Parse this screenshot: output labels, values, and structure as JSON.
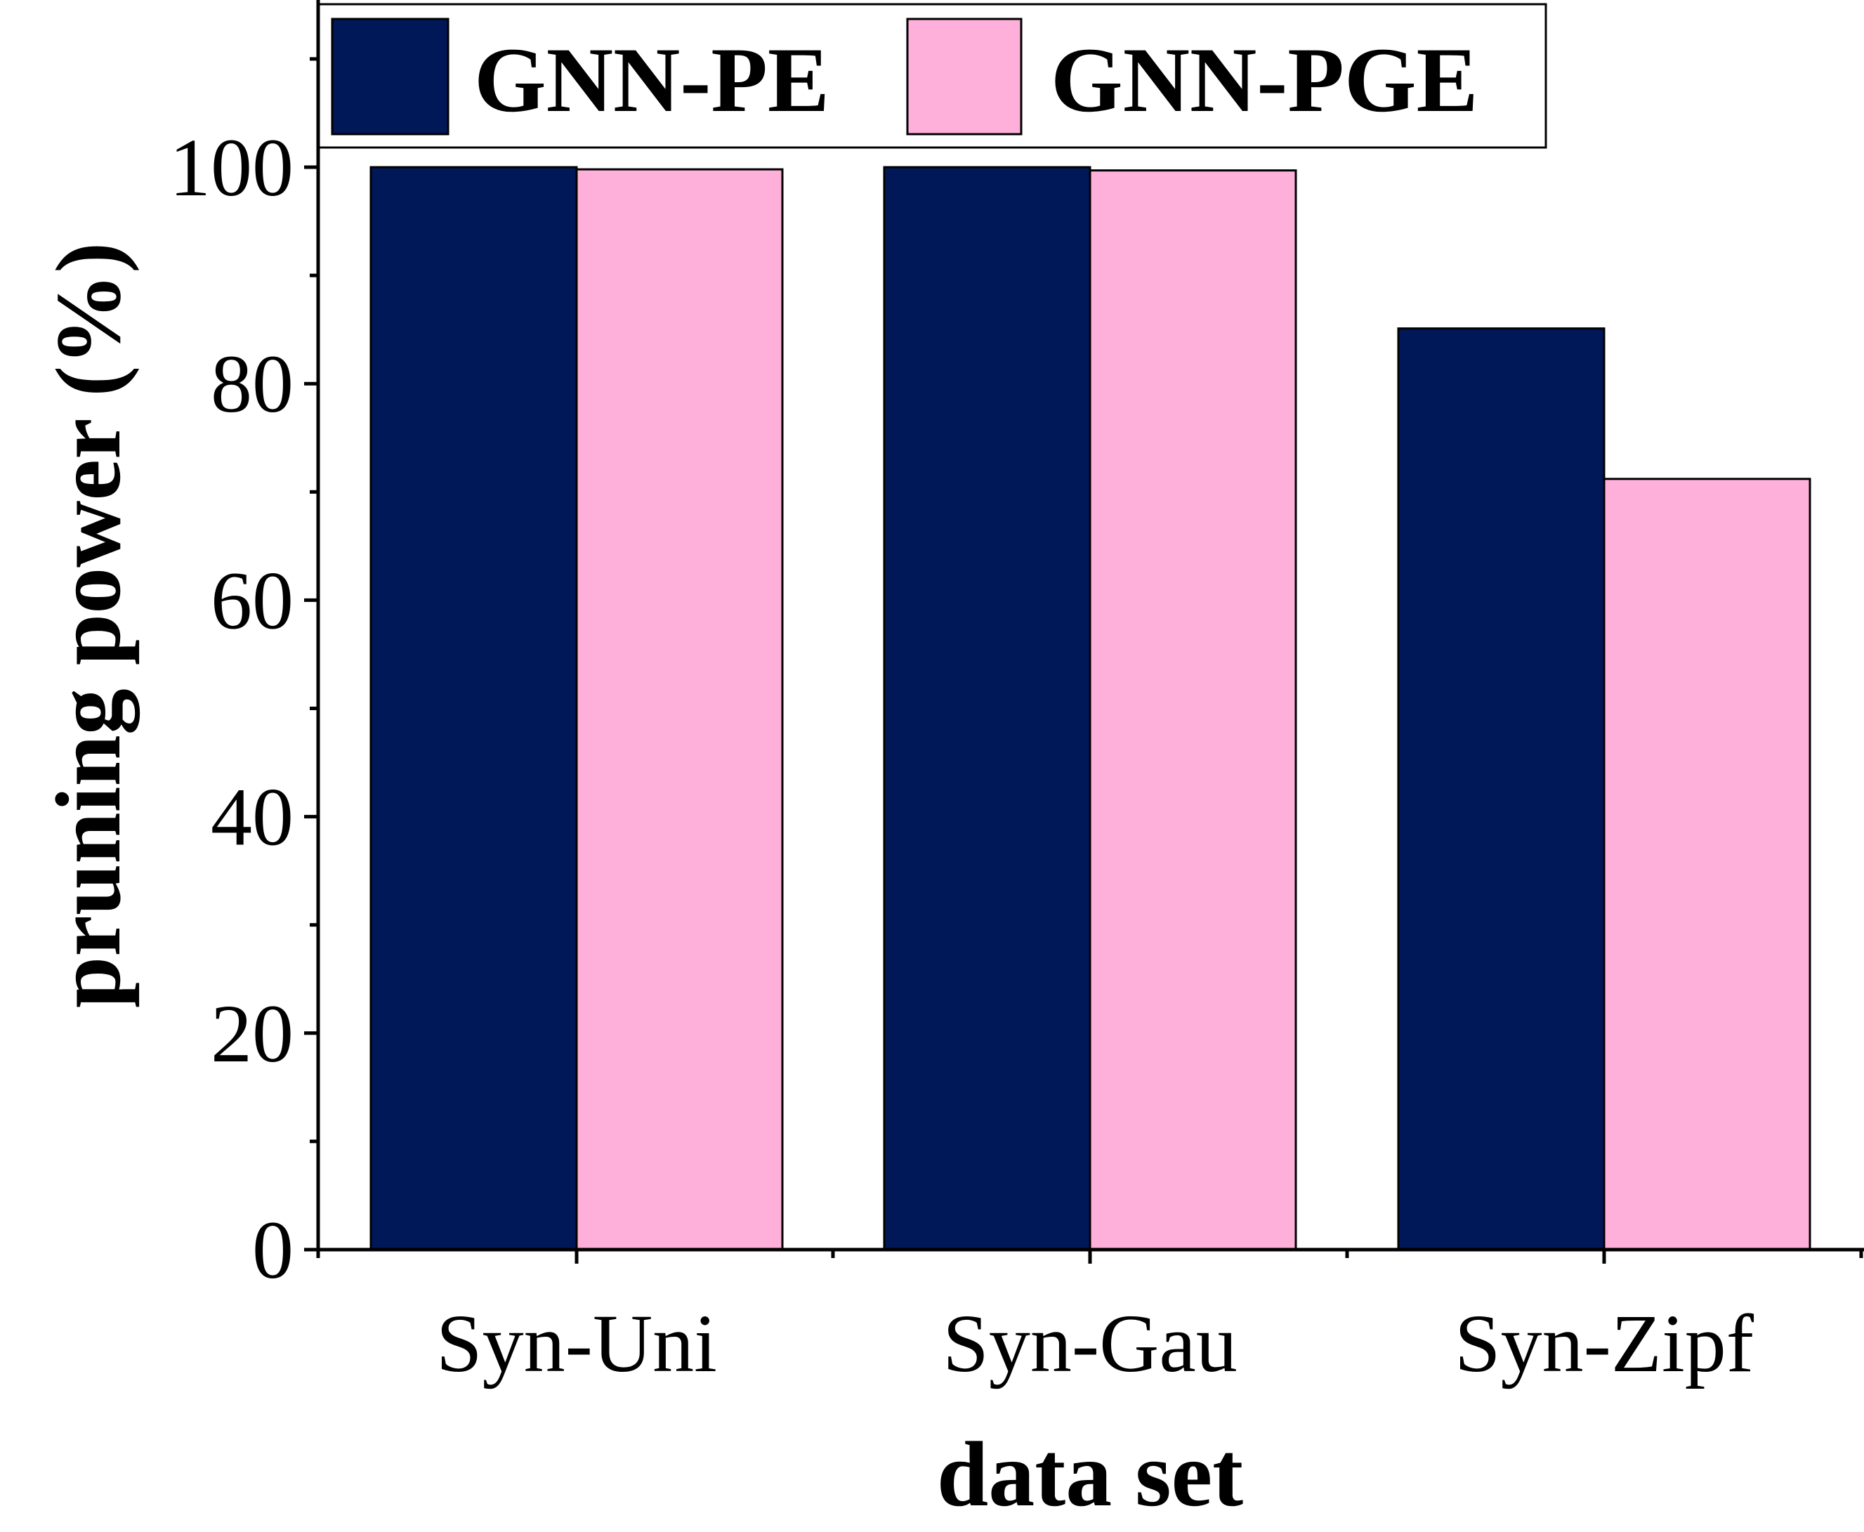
{
  "chart_data": {
    "type": "bar",
    "title": "",
    "xlabel": "data set",
    "ylabel": "pruning power (%)",
    "categories": [
      "Syn-Uni",
      "Syn-Gau",
      "Syn-Zipf"
    ],
    "series": [
      {
        "name": "GNN-PE",
        "color": "#001858",
        "values": [
          100,
          100,
          85.1
        ]
      },
      {
        "name": "GNN-PGE",
        "color": "#ffb0da",
        "values": [
          99.8,
          99.7,
          71.2
        ]
      }
    ],
    "ylim": [
      0,
      115
    ],
    "yticks": [
      0,
      20,
      40,
      60,
      80,
      100
    ],
    "yticks_minor": [
      10,
      30,
      50,
      70,
      90,
      110
    ],
    "legend_position": "top",
    "grid": false
  }
}
